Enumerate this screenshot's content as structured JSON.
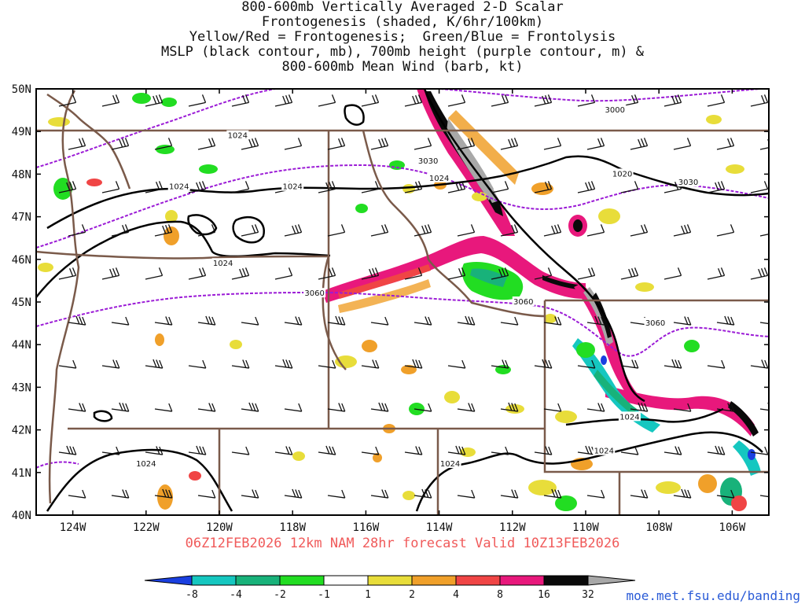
{
  "title_lines": [
    "800-600mb Vertically Averaged 2-D Scalar",
    "Frontogenesis (shaded, K/6hr/100km)",
    "Yellow/Red = Frontogenesis;  Green/Blue = Frontolysis",
    "MSLP (black contour, mb), 700mb height (purple contour, m) &",
    "800-600mb Mean Wind (barb, kt)"
  ],
  "forecast_text": "06Z12FEB2026 12km NAM 28hr forecast Valid 10Z13FEB2026",
  "credit": "moe.met.fsu.edu/banding",
  "map": {
    "lon_range": [
      -125,
      -105
    ],
    "lat_range": [
      40,
      50
    ],
    "lat_labels": [
      "50N",
      "49N",
      "48N",
      "47N",
      "46N",
      "45N",
      "44N",
      "43N",
      "42N",
      "41N",
      "40N"
    ],
    "lon_labels": [
      "124W",
      "122W",
      "120W",
      "118W",
      "116W",
      "114W",
      "112W",
      "110W",
      "108W",
      "106W"
    ],
    "lon_label_values": [
      -124,
      -122,
      -120,
      -118,
      -116,
      -114,
      -112,
      -110,
      -108,
      -106
    ],
    "height_contour_labels": [
      {
        "text": "3000",
        "lon": -109.2,
        "lat": 49.5
      },
      {
        "text": "3030",
        "lon": -114.3,
        "lat": 48.3
      },
      {
        "text": "3030",
        "lon": -107.2,
        "lat": 47.8
      },
      {
        "text": "3060",
        "lon": -117.4,
        "lat": 45.2
      },
      {
        "text": "3060",
        "lon": -111.7,
        "lat": 45.0
      },
      {
        "text": "3060",
        "lon": -108.1,
        "lat": 44.5
      }
    ],
    "mslp_contour_labels": [
      {
        "text": "1024",
        "lon": -119.5,
        "lat": 48.9
      },
      {
        "text": "1024",
        "lon": -121.1,
        "lat": 47.7
      },
      {
        "text": "1024",
        "lon": -118.0,
        "lat": 47.7
      },
      {
        "text": "1024",
        "lon": -114.0,
        "lat": 47.9
      },
      {
        "text": "1020",
        "lon": -109.0,
        "lat": 48.0
      },
      {
        "text": "1024",
        "lon": -119.9,
        "lat": 45.9
      },
      {
        "text": "1024",
        "lon": -122.0,
        "lat": 41.2
      },
      {
        "text": "1024",
        "lon": -113.7,
        "lat": 41.2
      },
      {
        "text": "1024",
        "lon": -109.5,
        "lat": 41.5
      },
      {
        "text": "1024",
        "lon": -108.8,
        "lat": 42.3
      }
    ],
    "colors": {
      "mslp": "#000000",
      "height": "#9b1bd6",
      "borders": "#7a5a4a",
      "barbs": "#111111"
    }
  },
  "colorbar": {
    "labels": [
      "-8",
      "-4",
      "-2",
      "-1",
      "1",
      "2",
      "4",
      "8",
      "16",
      "32"
    ],
    "colors": [
      "#1a3fe0",
      "#15c7c0",
      "#18b27a",
      "#22dd22",
      "#ffffff",
      "#e8dd3a",
      "#f0a02a",
      "#f04545",
      "#e8187c",
      "#0a0a0a",
      "#a8a8a8"
    ]
  }
}
